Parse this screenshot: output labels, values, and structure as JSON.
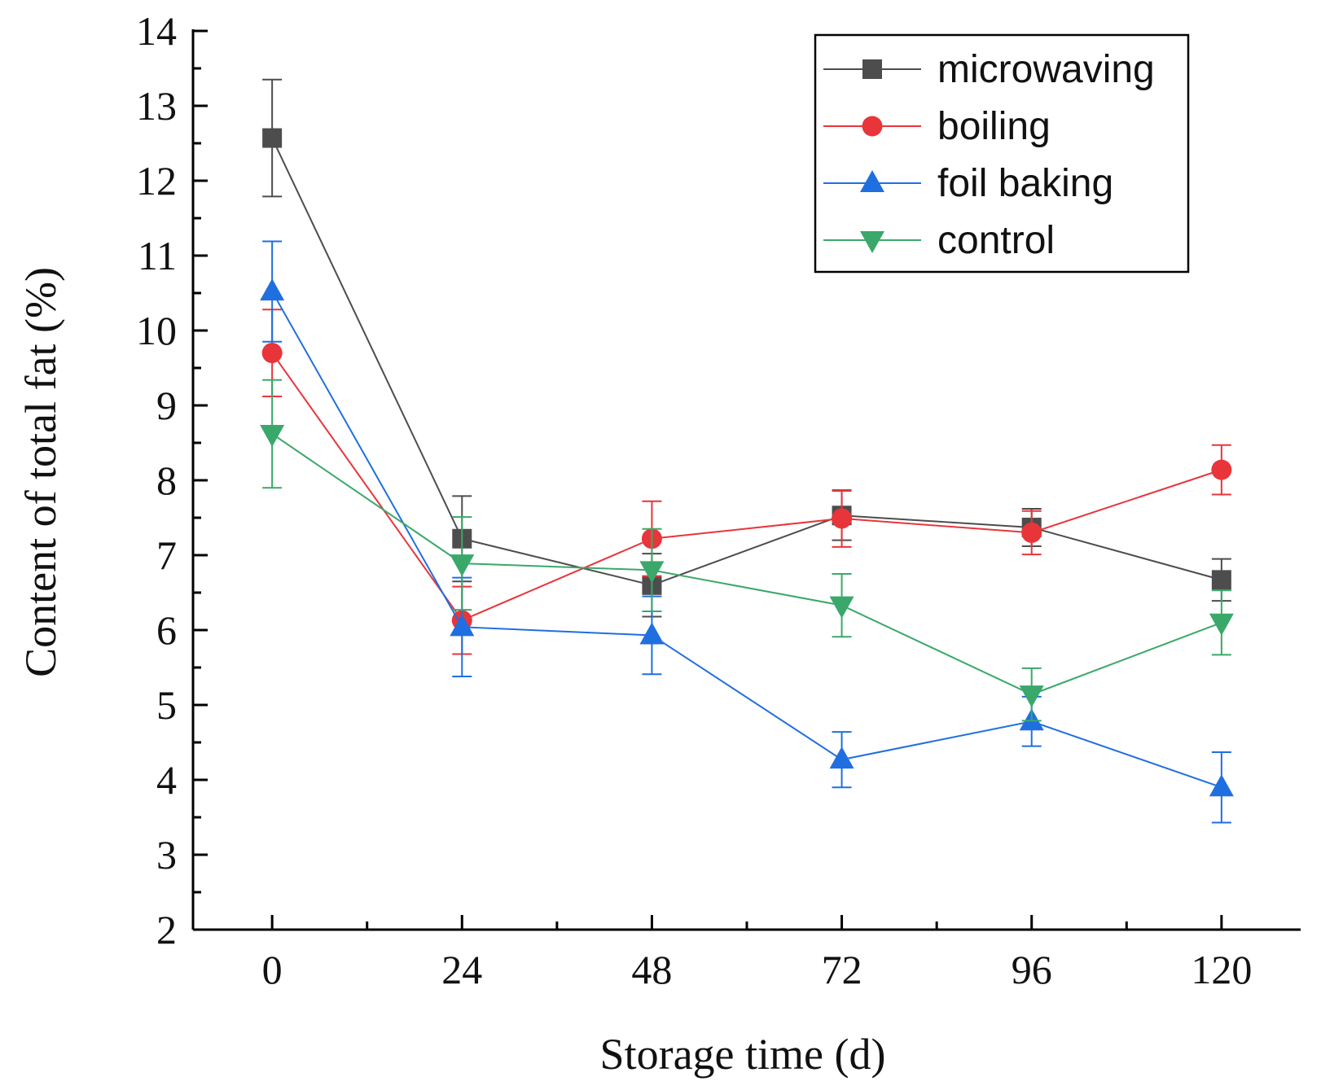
{
  "chart_data": {
    "type": "line",
    "title": "",
    "xlabel": "Storage time (d)",
    "ylabel": "Content of total fat (%)",
    "x": [
      0,
      24,
      48,
      72,
      96,
      120
    ],
    "xticks": [
      "0",
      "24",
      "48",
      "72",
      "96",
      "120"
    ],
    "yticks": [
      "2",
      "3",
      "4",
      "5",
      "6",
      "7",
      "8",
      "9",
      "10",
      "11",
      "12",
      "13",
      "14"
    ],
    "xlim": [
      -10,
      130
    ],
    "ylim": [
      2,
      14
    ],
    "grid": false,
    "legend_position": "top-right",
    "series": [
      {
        "name": "microwaving",
        "color": "#4d4d4d",
        "marker": "square",
        "values": [
          12.57,
          7.22,
          6.6,
          7.53,
          7.37,
          6.67
        ],
        "errors": [
          0.78,
          0.57,
          0.42,
          0.33,
          0.25,
          0.28
        ]
      },
      {
        "name": "boiling",
        "color": "#e8353a",
        "marker": "circle",
        "values": [
          9.7,
          6.13,
          7.22,
          7.49,
          7.3,
          8.14
        ],
        "errors": [
          0.58,
          0.45,
          0.5,
          0.38,
          0.29,
          0.33
        ]
      },
      {
        "name": "foil baking",
        "color": "#1f6fe0",
        "marker": "triangle-up",
        "values": [
          10.52,
          6.04,
          5.93,
          4.27,
          4.78,
          3.9
        ],
        "errors": [
          0.67,
          0.66,
          0.52,
          0.37,
          0.33,
          0.47
        ]
      },
      {
        "name": "control",
        "color": "#3aa86a",
        "marker": "triangle-down",
        "values": [
          8.62,
          6.89,
          6.8,
          6.33,
          5.14,
          6.1
        ],
        "errors": [
          0.72,
          0.62,
          0.55,
          0.42,
          0.35,
          0.43
        ]
      }
    ]
  }
}
